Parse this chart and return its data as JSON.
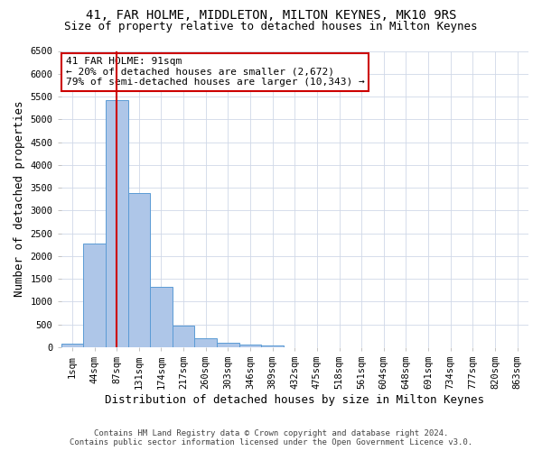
{
  "title": "41, FAR HOLME, MIDDLETON, MILTON KEYNES, MK10 9RS",
  "subtitle": "Size of property relative to detached houses in Milton Keynes",
  "xlabel": "Distribution of detached houses by size in Milton Keynes",
  "ylabel": "Number of detached properties",
  "footer_line1": "Contains HM Land Registry data © Crown copyright and database right 2024.",
  "footer_line2": "Contains public sector information licensed under the Open Government Licence v3.0.",
  "categories": [
    "1sqm",
    "44sqm",
    "87sqm",
    "131sqm",
    "174sqm",
    "217sqm",
    "260sqm",
    "303sqm",
    "346sqm",
    "389sqm",
    "432sqm",
    "475sqm",
    "518sqm",
    "561sqm",
    "604sqm",
    "648sqm",
    "691sqm",
    "734sqm",
    "777sqm",
    "820sqm",
    "863sqm"
  ],
  "values": [
    70,
    2280,
    5430,
    3380,
    1320,
    480,
    190,
    90,
    55,
    40,
    0,
    0,
    0,
    0,
    0,
    0,
    0,
    0,
    0,
    0,
    0
  ],
  "bar_color": "#aec6e8",
  "bar_edge_color": "#5b9bd5",
  "highlight_bar_index": 2,
  "highlight_line_color": "#cc0000",
  "annotation_line1": "41 FAR HOLME: 91sqm",
  "annotation_line2": "← 20% of detached houses are smaller (2,672)",
  "annotation_line3": "79% of semi-detached houses are larger (10,343) →",
  "annotation_box_color": "#cc0000",
  "ylim": [
    0,
    6500
  ],
  "yticks": [
    0,
    500,
    1000,
    1500,
    2000,
    2500,
    3000,
    3500,
    4000,
    4500,
    5000,
    5500,
    6000,
    6500
  ],
  "bg_color": "#ffffff",
  "grid_color": "#d0d8e8",
  "title_fontsize": 10,
  "subtitle_fontsize": 9,
  "axis_label_fontsize": 9,
  "tick_fontsize": 7.5,
  "annotation_fontsize": 8,
  "footer_fontsize": 6.5
}
